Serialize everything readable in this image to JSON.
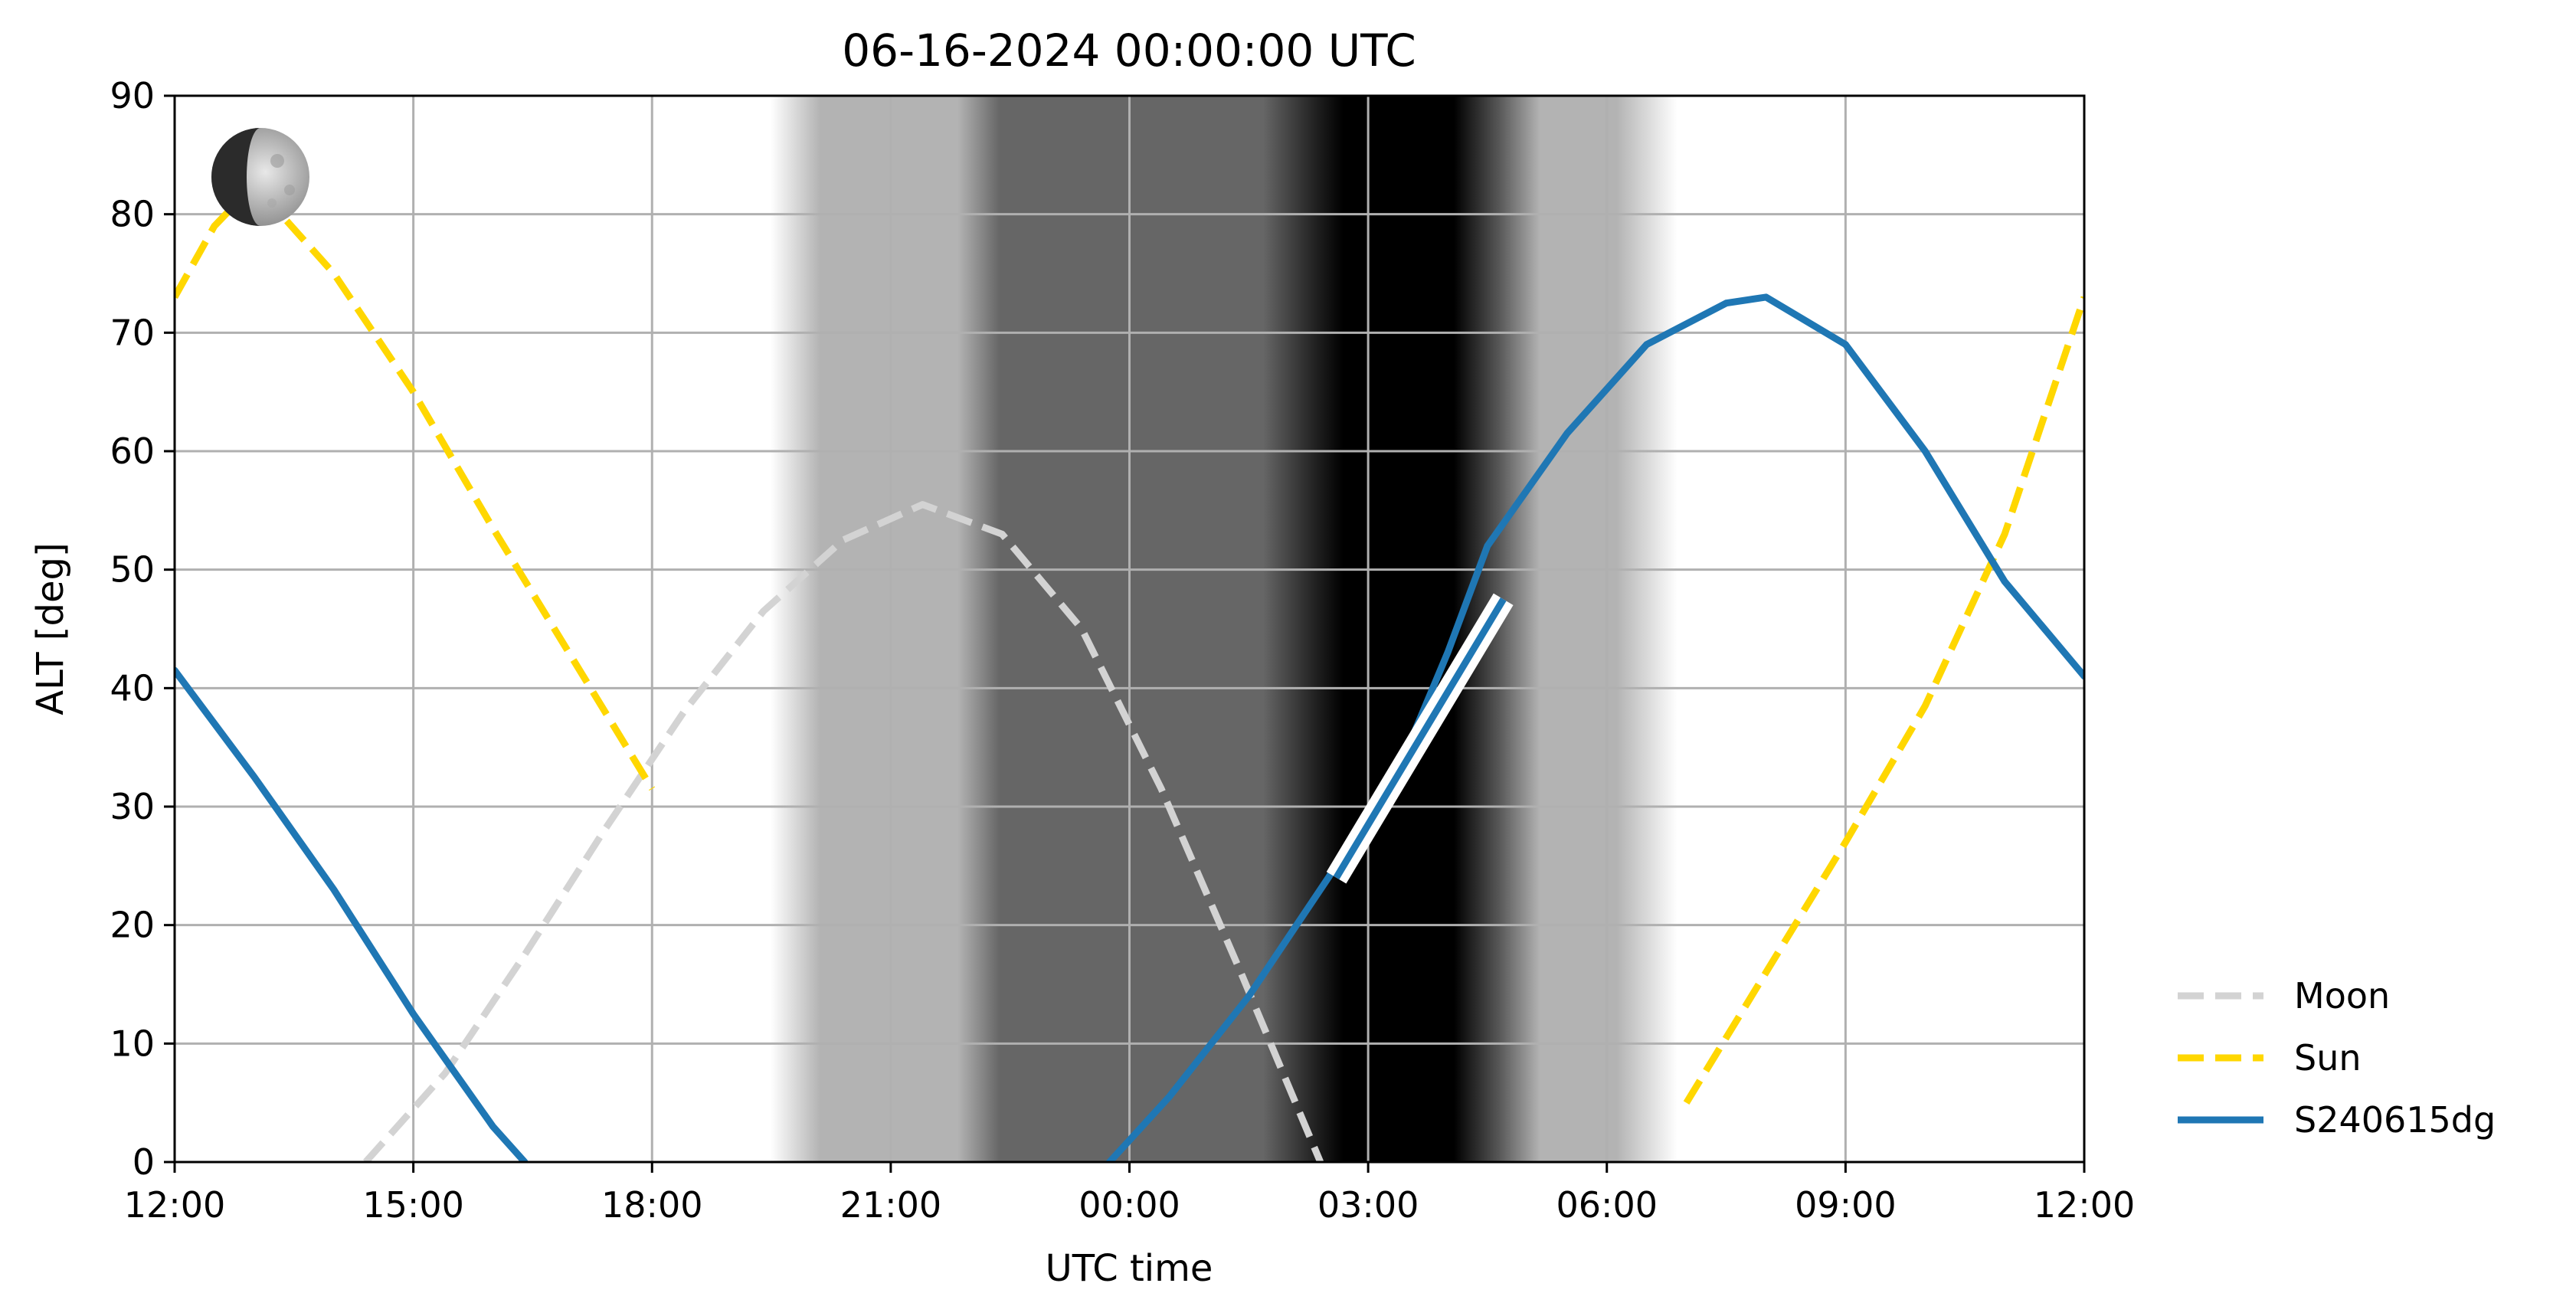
{
  "chart_data": {
    "type": "line",
    "title": "06-16-2024 00:00:00 UTC",
    "xlabel": "UTC time",
    "ylabel": "ALT [deg]",
    "xlim": [
      0,
      24
    ],
    "x_ticks": [
      0,
      3,
      6,
      9,
      12,
      15,
      18,
      21,
      24
    ],
    "x_tick_labels": [
      "12:00",
      "15:00",
      "18:00",
      "21:00",
      "00:00",
      "03:00",
      "06:00",
      "09:00",
      "12:00"
    ],
    "ylim": [
      0,
      90
    ],
    "y_ticks": [
      0,
      10,
      20,
      30,
      40,
      50,
      60,
      70,
      80,
      90
    ],
    "y_tick_labels": [
      "0",
      "10",
      "20",
      "30",
      "40",
      "50",
      "60",
      "70",
      "80",
      "90"
    ],
    "grid": true,
    "legend_position": "right-bottom",
    "x_units": "hours since 06-15-2024 12:00 UTC",
    "series": [
      {
        "name": "Moon",
        "style": "dashed",
        "color": "#d3d3d3",
        "x": [
          2.4,
          3.4,
          4.4,
          5.4,
          6.4,
          7.4,
          8.4,
          9.4,
          10.4,
          11.4,
          12.4,
          13.4,
          14.4
        ],
        "y": [
          0,
          7.5,
          17.5,
          28,
          38,
          46.5,
          52.5,
          55.5,
          53,
          45,
          31.5,
          16,
          0
        ]
      },
      {
        "name": "Sun",
        "style": "dashed",
        "color": "#ffd700",
        "x": [
          0,
          0.5,
          1,
          2,
          3,
          4,
          5,
          6,
          7,
          8,
          18.5,
          19,
          20,
          21,
          22,
          23,
          24
        ],
        "y": [
          73,
          79,
          82.5,
          75,
          65,
          53.5,
          42.5,
          31.5,
          20,
          9,
          0,
          5,
          16,
          27,
          38.5,
          53,
          73
        ],
        "segments": [
          [
            0,
            7
          ],
          [
            11,
            16
          ]
        ]
      },
      {
        "name": "S240615dg",
        "style": "solid",
        "color": "#1f77b4",
        "x": [
          0,
          1,
          2,
          3,
          4,
          4.4,
          11.75,
          12.5,
          13.5,
          14.5,
          15.5,
          16,
          16.5,
          17.5,
          18.5,
          19.5,
          20,
          21,
          22,
          23,
          24
        ],
        "y": [
          41.5,
          32.5,
          23,
          12.5,
          3,
          0,
          0,
          5.5,
          14,
          24,
          35,
          43,
          52,
          61.5,
          69,
          72.5,
          73,
          69,
          60,
          49,
          41
        ],
        "segments": [
          [
            0,
            5
          ],
          [
            6,
            20
          ]
        ]
      }
    ],
    "highlight_segment": {
      "color": "#ffffff",
      "x": [
        14.6,
        16.7
      ],
      "y": [
        24,
        47.5
      ]
    },
    "twilight_background": {
      "colors": {
        "day": "#ffffff",
        "civil": "#b3b3b3",
        "nautical": "#666666",
        "night": "#000000"
      }
    },
    "moon_icon": "moon-phase-icon"
  }
}
